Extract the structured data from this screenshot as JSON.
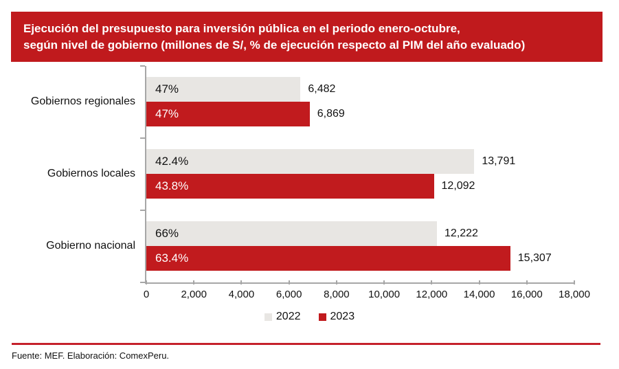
{
  "title": {
    "line1": "Ejecución del presupuesto para inversión pública en el periodo enero-octubre,",
    "line2": "según nivel de gobierno (millones de S/, % de ejecución respecto al PIM del año evaluado)"
  },
  "colors": {
    "banner_red": "#c01a1d",
    "bar_red": "#c11b1e",
    "bar_gray": "#e8e6e3",
    "axis_gray": "#a6a6a6",
    "footer_line_red": "#c5212b"
  },
  "chart_data": {
    "type": "bar",
    "orientation": "horizontal",
    "title": "Ejecución del presupuesto para inversión pública en el periodo enero-octubre, según nivel de gobierno (millones de S/, % de ejecución respecto al PIM del año evaluado)",
    "categories": [
      "Gobiernos regionales",
      "Gobiernos locales",
      "Gobierno nacional"
    ],
    "series": [
      {
        "name": "2022",
        "color": "#e8e6e3",
        "values": [
          6482,
          13791,
          12222
        ],
        "value_labels": [
          "6,482",
          "13,791",
          "12,222"
        ],
        "pct_labels": [
          "47%",
          "42.4%",
          "66%"
        ],
        "pct_label_color": "#111111"
      },
      {
        "name": "2023",
        "color": "#c11b1e",
        "values": [
          6869,
          12092,
          15307
        ],
        "value_labels": [
          "6,869",
          "12,092",
          "15,307"
        ],
        "pct_labels": [
          "47%",
          "43.8%",
          "63.4%"
        ],
        "pct_label_color": "#ffffff"
      }
    ],
    "xlim": [
      0,
      18000
    ],
    "x_ticks": [
      0,
      2000,
      4000,
      6000,
      8000,
      10000,
      12000,
      14000,
      16000,
      18000
    ],
    "x_tick_labels": [
      "0",
      "2,000",
      "4,000",
      "6,000",
      "8,000",
      "10,000",
      "12,000",
      "14,000",
      "16,000",
      "18,000"
    ],
    "grid": false,
    "legend_position": "bottom"
  },
  "footer": {
    "source": "Fuente: MEF. Elaboración: ComexPeru."
  }
}
